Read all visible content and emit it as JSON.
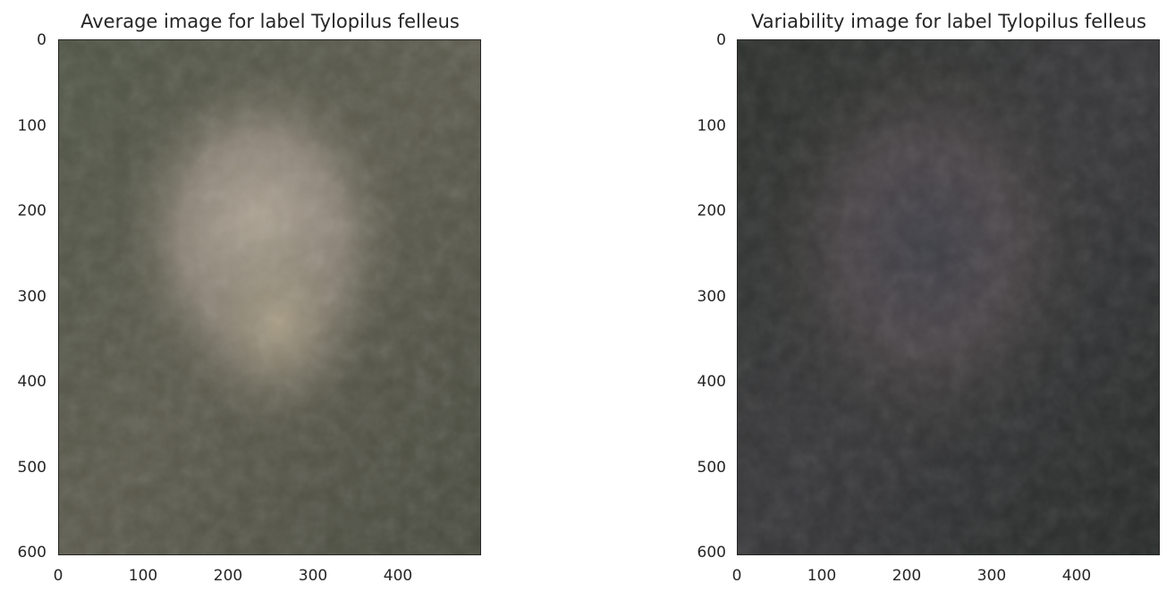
{
  "chart_data": [
    {
      "type": "image",
      "title": "Average image for label Tylopilus felleus",
      "xlabel": "",
      "ylabel": "",
      "xlim": [
        0,
        500
      ],
      "ylim": [
        600,
        0
      ],
      "xticks": [
        0,
        100,
        200,
        300,
        400
      ],
      "yticks": [
        0,
        100,
        200,
        300,
        400,
        500,
        600
      ],
      "grid": false,
      "colors": {
        "base": "#5a5a4c",
        "center": "#b0a594",
        "edge": "#3f4438"
      }
    },
    {
      "type": "image",
      "title": "Variability image for label Tylopilus felleus",
      "xlabel": "",
      "ylabel": "",
      "xlim": [
        0,
        500
      ],
      "ylim": [
        600,
        0
      ],
      "xticks": [
        0,
        100,
        200,
        300,
        400
      ],
      "yticks": [
        0,
        100,
        200,
        300,
        400,
        500,
        600
      ],
      "grid": false,
      "colors": {
        "base": "#35352f",
        "center": "#4a4648",
        "edge": "#25282a"
      }
    }
  ]
}
